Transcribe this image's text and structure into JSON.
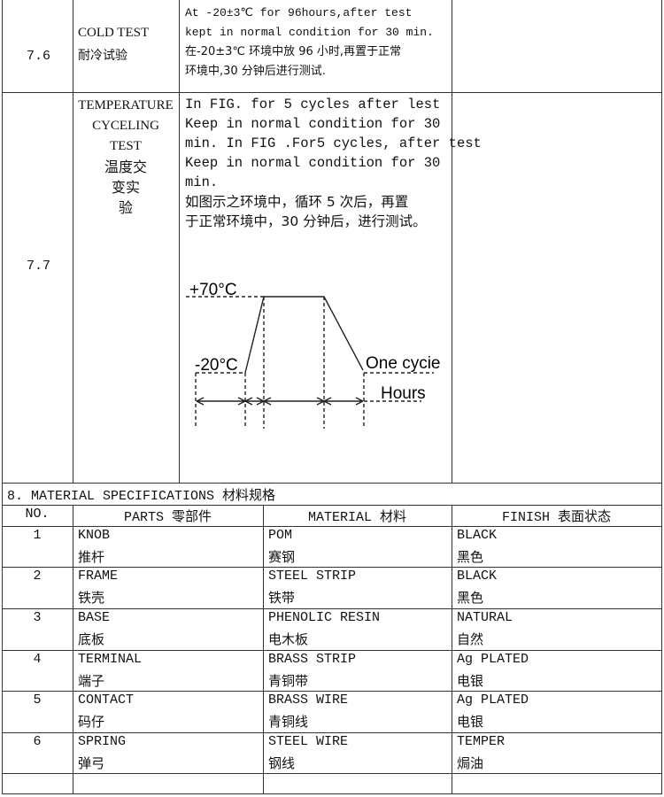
{
  "tests": [
    {
      "no": "7.6",
      "name_en": [
        "COLD TEST"
      ],
      "name_cn": [
        "耐冷试验"
      ],
      "desc": [
        "At -20±3℃ for 96hours,after test",
        "kept in normal condition for 30 min.",
        "在-20±3℃ 环境中放 96 小时,再置于正常",
        "环境中,30 分钟后进行测试."
      ]
    },
    {
      "no": "7.7",
      "name_en": [
        "TEMPERATURE",
        "CYCELING",
        "TEST"
      ],
      "name_cn": [
        "温度交",
        "变实",
        "验"
      ],
      "desc": [
        "In FIG.  for 5 cycles after lest",
        "Keep  in  normal  condition  for  30",
        "min. In FIG .For5 cycles, after test",
        "Keep  in  normal  condition  for  30",
        "min.",
        "如图示之环境中，循环 5 次后，再置",
        "于正常环境中，30 分钟后，进行测试。"
      ],
      "figure": {
        "high": "+70°C",
        "low": "-20°C",
        "cycle": "One cycie",
        "hours": "Hours"
      }
    }
  ],
  "section": {
    "title": "8. MATERIAL SPECIFICATIONS 材料规格"
  },
  "materials": {
    "headers": [
      "NO.",
      "PARTS 零部件",
      "MATERIAL 材料",
      "FINISH 表面状态"
    ],
    "rows": [
      {
        "no": "1",
        "part": [
          "KNOB",
          "推杆"
        ],
        "material": [
          "POM",
          "赛钢"
        ],
        "finish": [
          "BLACK",
          "黑色"
        ]
      },
      {
        "no": "2",
        "part": [
          "FRAME",
          "铁壳"
        ],
        "material": [
          "STEEL STRIP",
          "铁带"
        ],
        "finish": [
          "BLACK",
          "黑色"
        ]
      },
      {
        "no": "3",
        "part": [
          "BASE",
          "底板"
        ],
        "material": [
          "PHENOLIC RESIN",
          "电木板"
        ],
        "finish": [
          "NATURAL",
          "自然"
        ]
      },
      {
        "no": "4",
        "part": [
          "TERMINAL",
          "端子"
        ],
        "material": [
          "BRASS STRIP",
          "青铜带"
        ],
        "finish": [
          "Ag PLATED",
          "电银"
        ]
      },
      {
        "no": "5",
        "part": [
          "CONTACT",
          "码仔"
        ],
        "material": [
          "BRASS WIRE",
          "青铜线"
        ],
        "finish": [
          "Ag PLATED",
          "电银"
        ]
      },
      {
        "no": "6",
        "part": [
          "SPRING",
          "弹弓"
        ],
        "material": [
          "STEEL WIRE",
          "钢线"
        ],
        "finish": [
          "TEMPER",
          "焗油"
        ]
      }
    ]
  }
}
